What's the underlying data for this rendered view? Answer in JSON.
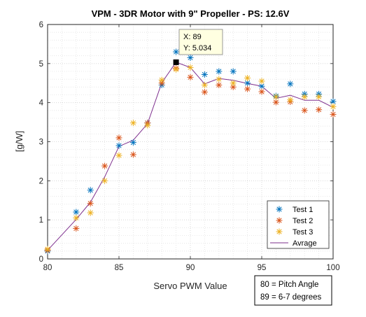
{
  "chart_data": {
    "type": "scatter",
    "title": "VPM - 3DR Motor with 9\" Propeller - PS: 12.6V",
    "xlabel": "Servo PWM Value",
    "ylabel": "[g/W]",
    "xlim": [
      80,
      100
    ],
    "ylim": [
      0,
      6
    ],
    "xticks": [
      "80",
      "85",
      "90",
      "95",
      "100"
    ],
    "yticks": [
      "0",
      "1",
      "2",
      "3",
      "4",
      "5",
      "6"
    ],
    "grid": "minor-dotted",
    "legend_position": "bottom-right",
    "series": [
      {
        "name": "Test 1",
        "marker": "asterisk",
        "color": "#0072BD",
        "x": [
          80,
          82,
          83,
          85,
          86,
          87,
          88,
          89,
          90,
          91,
          92,
          93,
          94,
          95,
          96,
          97,
          98,
          99,
          100
        ],
        "y": [
          0.2,
          1.2,
          1.76,
          2.9,
          2.98,
          3.48,
          4.45,
          5.3,
          5.15,
          4.72,
          4.8,
          4.8,
          4.5,
          4.42,
          4.17,
          4.48,
          4.22,
          4.22,
          4.03
        ]
      },
      {
        "name": "Test 2",
        "marker": "asterisk",
        "color": "#D95319",
        "x": [
          80,
          82,
          83,
          84,
          85,
          86,
          87,
          88,
          89,
          90,
          91,
          92,
          93,
          94,
          95,
          96,
          97,
          98,
          99,
          100
        ],
        "y": [
          0.22,
          0.78,
          1.42,
          2.38,
          3.1,
          2.67,
          3.48,
          4.5,
          4.88,
          4.65,
          4.27,
          4.45,
          4.4,
          4.35,
          4.28,
          4.01,
          4.02,
          3.8,
          3.82,
          3.7
        ]
      },
      {
        "name": "Test 3",
        "marker": "asterisk",
        "color": "#EDB120",
        "x": [
          80,
          82,
          83,
          84,
          85,
          86,
          87,
          88,
          89,
          90,
          91,
          92,
          93,
          94,
          95,
          96,
          97,
          98,
          99,
          100
        ],
        "y": [
          0.25,
          1.05,
          1.18,
          2.0,
          2.65,
          3.48,
          3.42,
          4.58,
          4.85,
          4.9,
          4.45,
          4.6,
          4.5,
          4.63,
          4.55,
          4.15,
          4.07,
          4.15,
          4.15,
          3.9
        ]
      },
      {
        "name": "Avrage",
        "marker": "line",
        "color": "#7E2F8E",
        "x": [
          80,
          82,
          83,
          84,
          85,
          86,
          87,
          88,
          89,
          90,
          91,
          92,
          93,
          94,
          95,
          96,
          97,
          98,
          99,
          100
        ],
        "y": [
          0.22,
          1.01,
          1.45,
          2.1,
          2.88,
          3.04,
          3.46,
          4.51,
          5.034,
          4.9,
          4.48,
          4.62,
          4.57,
          4.49,
          4.42,
          4.11,
          4.19,
          4.06,
          4.06,
          3.88
        ]
      }
    ],
    "datatip": {
      "x": 89,
      "y": 5.034,
      "label_x": "X: 89",
      "label_y": "Y: 5.034"
    },
    "annotation": [
      "80 = Pitch Angle",
      "89 = 6-7 degrees"
    ]
  }
}
